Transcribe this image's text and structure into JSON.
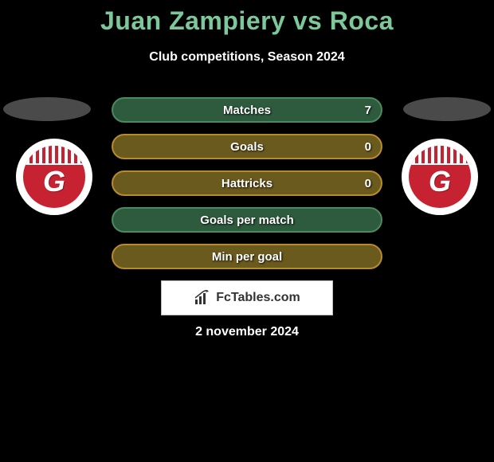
{
  "title": "Juan Zampiery vs Roca",
  "subtitle": "Club competitions, Season 2024",
  "title_color": "#7cc89a",
  "background_color": "#000000",
  "stats": [
    {
      "label": "Matches",
      "value": "7",
      "border": "#4a8a5f",
      "bg": "#2e5a3d"
    },
    {
      "label": "Goals",
      "value": "0",
      "border": "#b88a2e",
      "bg": "#6b5a1e"
    },
    {
      "label": "Hattricks",
      "value": "0",
      "border": "#b88a2e",
      "bg": "#6b5a1e"
    },
    {
      "label": "Goals per match",
      "value": "",
      "border": "#4a8a5f",
      "bg": "#2e5a3d"
    },
    {
      "label": "Min per goal",
      "value": "",
      "border": "#b88a2e",
      "bg": "#6b5a1e"
    }
  ],
  "badge": {
    "bg": "#c62232",
    "letter": "G"
  },
  "brand": "FcTables.com",
  "date": "2 november 2024"
}
